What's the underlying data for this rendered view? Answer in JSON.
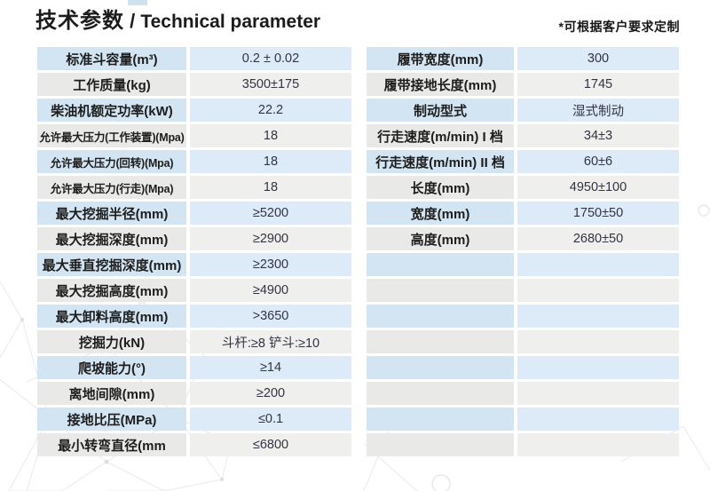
{
  "header": {
    "title_zh": "技术参数",
    "title_sep": " / ",
    "title_en": "Technical parameter",
    "note": "*可根据客户要求定制"
  },
  "colors": {
    "row_blue_label": "#d3e4f2",
    "row_blue_value": "#dcebf7",
    "row_gray_label": "#e9e9e7",
    "row_gray_value": "#efefed",
    "gap_white": "#ffffff",
    "text_dark": "#1d1d1d"
  },
  "left_table": {
    "rows": [
      {
        "label": "标准斗容量(m³)",
        "value": "0.2 ± 0.02"
      },
      {
        "label": "工作质量(kg)",
        "value": "3500±175"
      },
      {
        "label": "柴油机额定功率(kW)",
        "value": "22.2"
      },
      {
        "label": "允许最大压力(工作装置)(Mpa)",
        "value": "18",
        "small": true
      },
      {
        "label": "允许最大压力(回转)(Mpa)",
        "value": "18",
        "small": true
      },
      {
        "label": "允许最大压力(行走)(Mpa)",
        "value": "18",
        "small": true
      },
      {
        "label": "最大挖掘半径(mm)",
        "value": "≥5200"
      },
      {
        "label": "最大挖掘深度(mm)",
        "value": "≥2900"
      },
      {
        "label": "最大垂直挖掘深度(mm)",
        "value": "≥2300"
      },
      {
        "label": "最大挖掘高度(mm)",
        "value": "≥4900"
      },
      {
        "label": "最大卸料高度(mm)",
        "value": ">3650"
      },
      {
        "label": "挖掘力(kN)",
        "value": "斗杆:≥8 铲斗:≥10"
      },
      {
        "label": "爬坡能力(°)",
        "value": "≥14"
      },
      {
        "label": "离地间隙(mm)",
        "value": "≥200"
      },
      {
        "label": "接地比压(MPa)",
        "value": "≤0.1"
      },
      {
        "label": "最小转弯直径(mm",
        "value": "≤6800"
      }
    ]
  },
  "right_table": {
    "rows": [
      {
        "label": "履带宽度(mm)",
        "value": "300"
      },
      {
        "label": "履带接地长度(mm)",
        "value": "1745"
      },
      {
        "label": "制动型式",
        "value": "湿式制动"
      },
      {
        "label": "行走速度(m/min) I 档",
        "value": "34±3"
      },
      {
        "label": "行走速度(m/min) II 档",
        "value": "60±6"
      },
      {
        "label": "长度(mm)",
        "value": "4950±100"
      },
      {
        "label": "宽度(mm)",
        "value": "1750±50"
      },
      {
        "label": "高度(mm)",
        "value": "2680±50"
      },
      {
        "label": "",
        "value": ""
      },
      {
        "label": "",
        "value": ""
      },
      {
        "label": "",
        "value": ""
      },
      {
        "label": "",
        "value": ""
      },
      {
        "label": "",
        "value": ""
      },
      {
        "label": "",
        "value": ""
      },
      {
        "label": "",
        "value": ""
      },
      {
        "label": "",
        "value": ""
      }
    ]
  }
}
